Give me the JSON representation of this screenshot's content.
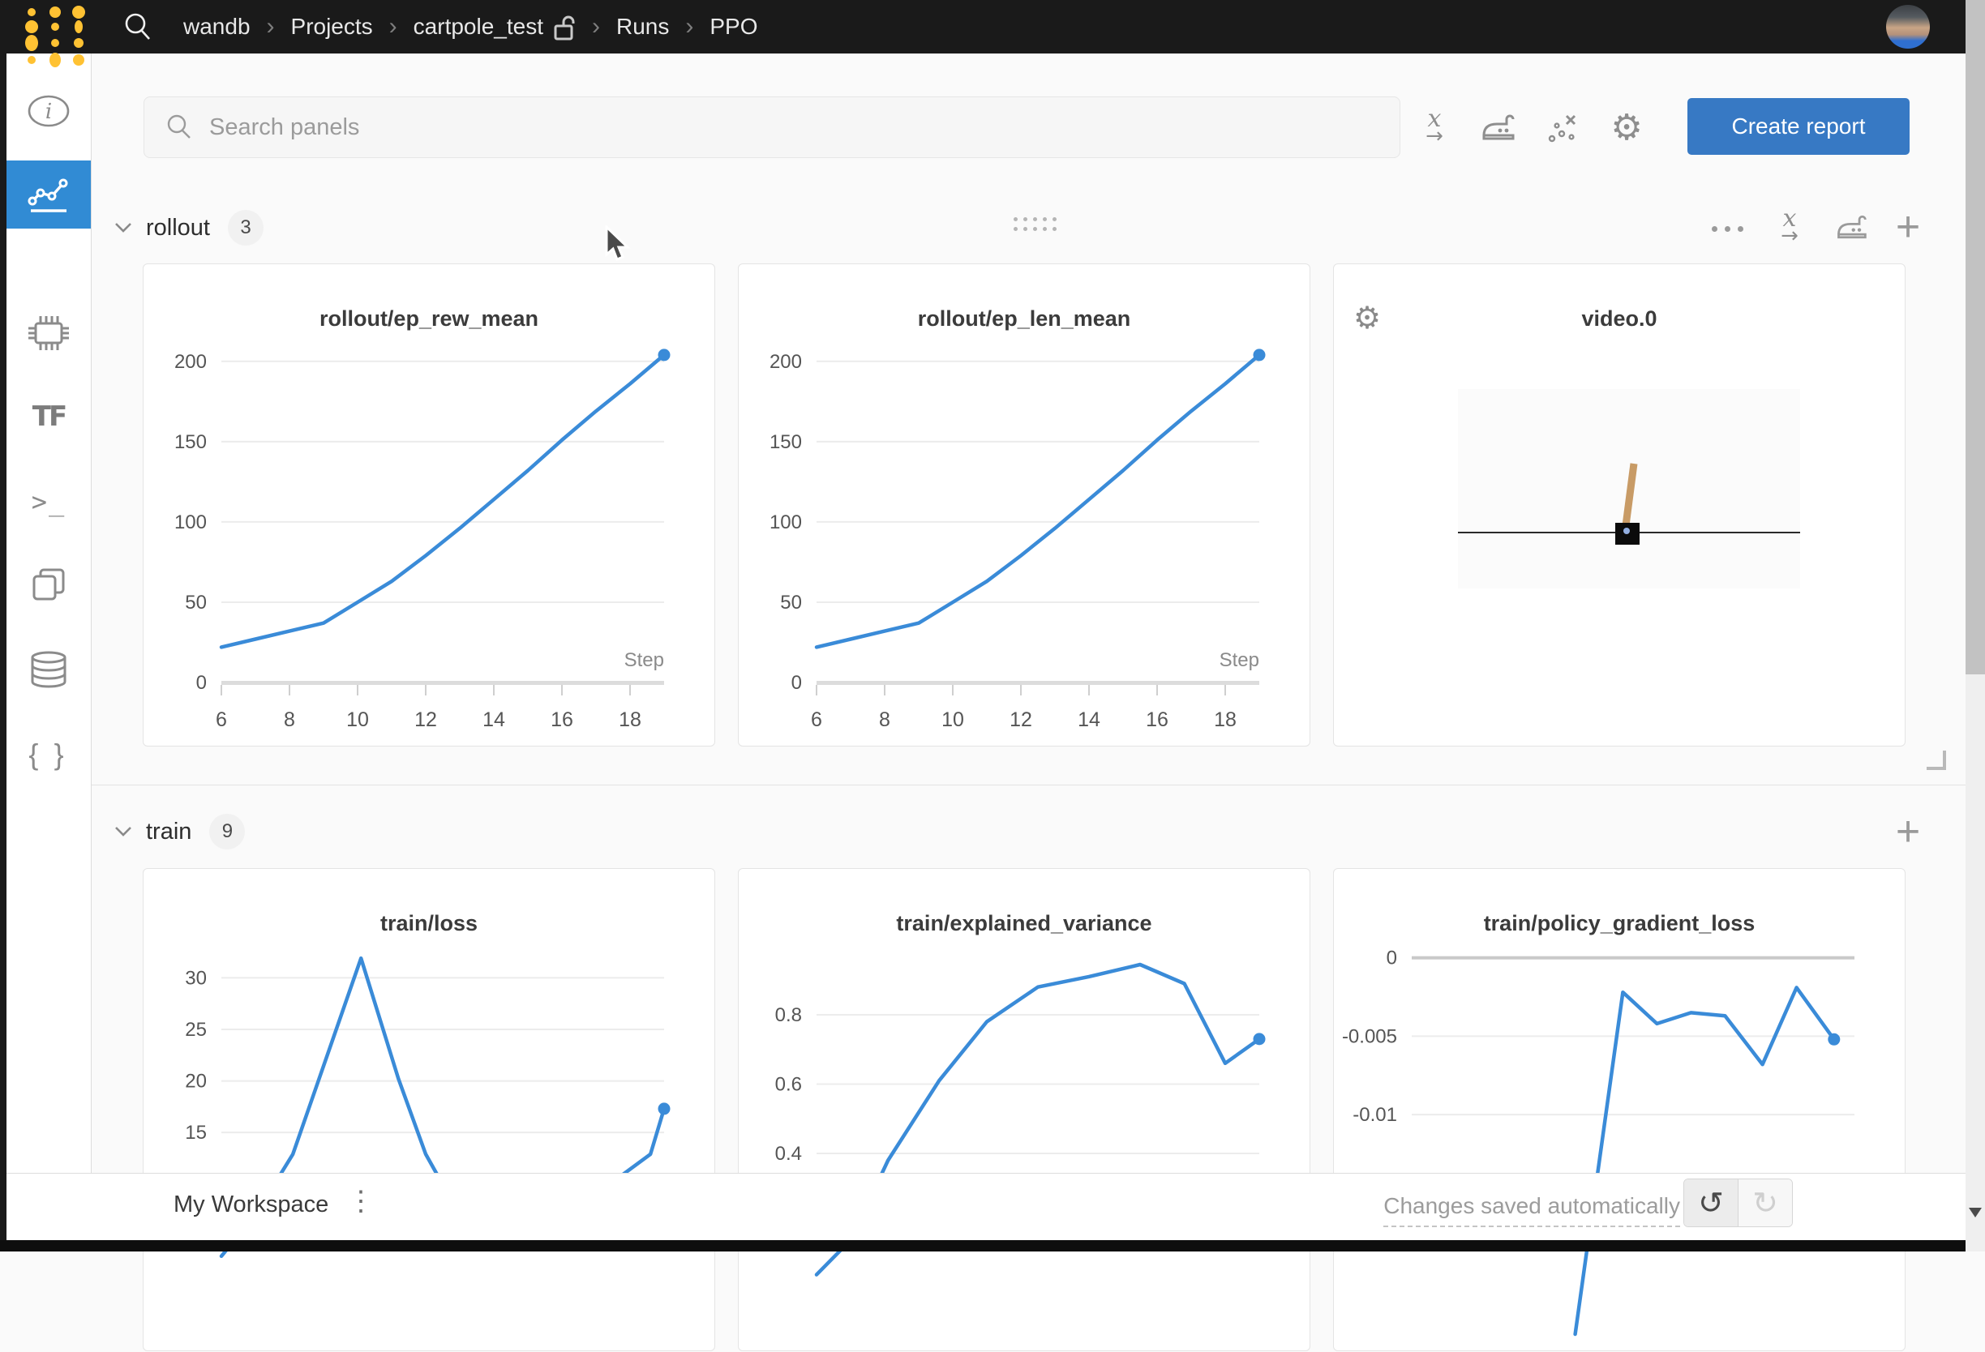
{
  "navbar": {
    "brand_icon": "wandb-dots-logo",
    "search_icon": "magnifier-icon",
    "breadcrumb": [
      {
        "label": "wandb"
      },
      {
        "label": "Projects"
      },
      {
        "label": "cartpole_test",
        "lock_icon": "open-lock-icon"
      },
      {
        "label": "Runs"
      },
      {
        "label": "PPO"
      }
    ],
    "avatar": "user-profile-photo"
  },
  "sidebar": {
    "items": [
      {
        "id": "overview",
        "icon": "info-icon"
      },
      {
        "id": "charts",
        "icon": "line-chart-icon",
        "active": true
      },
      {
        "id": "system",
        "icon": "chip-icon"
      },
      {
        "id": "model",
        "icon": "tensorflow-icon"
      },
      {
        "id": "logs",
        "icon": "terminal-icon"
      },
      {
        "id": "files",
        "icon": "files-icon"
      },
      {
        "id": "artifacts",
        "icon": "database-icon"
      },
      {
        "id": "config",
        "icon": "braces-icon"
      }
    ]
  },
  "toolbar": {
    "search_placeholder": "Search panels",
    "icons": [
      "x-axis-icon",
      "panel-settings-icon",
      "outliers-icon",
      "settings-gear-icon"
    ],
    "create_report_label": "Create report"
  },
  "sections": [
    {
      "id": "rollout",
      "title": "rollout",
      "count": "3",
      "actions": [
        "more-options",
        "x-axis",
        "panel-settings",
        "add-panel"
      ]
    },
    {
      "id": "train",
      "title": "train",
      "count": "9",
      "actions": [
        "add-panel"
      ]
    }
  ],
  "video_panel": {
    "title": "video.0",
    "gear_icon": "panel-settings-gear",
    "scene": {
      "pole_color": "#c89b66",
      "cart_color": "#0b0b0b",
      "track_color": "#2a2a2a",
      "pivot_color": "#92aee0",
      "backdrop_color": "#fbfbfb"
    }
  },
  "footer": {
    "workspace_label": "My Workspace",
    "autosave_text": "Changes saved automatically",
    "undo_icon": "undo-arrow",
    "redo_icon": "redo-arrow"
  },
  "theme": {
    "accent_blue": "#3779c4",
    "active_sidebar_blue": "#318bd4",
    "line_blue": "#3a8bd8",
    "navbar_bg": "#1a1a1a",
    "logo_yellow": "#ffc233"
  },
  "chart_data": [
    {
      "type": "line",
      "title": "rollout/ep_rew_mean",
      "color": "#3a8bd8",
      "x": [
        6,
        7,
        8,
        9,
        10,
        11,
        12,
        13,
        14,
        15,
        16,
        17,
        18,
        19
      ],
      "values": [
        22,
        27,
        32,
        37,
        50,
        63,
        79,
        96,
        114,
        132,
        151,
        169,
        186,
        204
      ],
      "xlabel": "Step",
      "xticks": [
        6,
        8,
        10,
        12,
        14,
        16,
        18
      ],
      "yticks": [
        0,
        50,
        100,
        150,
        200
      ],
      "ytick_labels": [
        "0",
        "50",
        "100",
        "150",
        "200"
      ],
      "xlim": [
        6,
        19
      ],
      "ylim": [
        0,
        210
      ],
      "x_axis": true,
      "endpoint_dot": true,
      "grid": true,
      "legend": "none"
    },
    {
      "type": "line",
      "title": "rollout/ep_len_mean",
      "color": "#3a8bd8",
      "x": [
        6,
        7,
        8,
        9,
        10,
        11,
        12,
        13,
        14,
        15,
        16,
        17,
        18,
        19
      ],
      "values": [
        22,
        27,
        32,
        37,
        50,
        63,
        79,
        96,
        114,
        132,
        151,
        169,
        186,
        204
      ],
      "xlabel": "Step",
      "xticks": [
        6,
        8,
        10,
        12,
        14,
        16,
        18
      ],
      "yticks": [
        0,
        50,
        100,
        150,
        200
      ],
      "ytick_labels": [
        "0",
        "50",
        "100",
        "150",
        "200"
      ],
      "xlim": [
        6,
        19
      ],
      "ylim": [
        0,
        210
      ],
      "x_axis": true,
      "endpoint_dot": true,
      "grid": true,
      "legend": "none"
    },
    {
      "type": "line",
      "title": "train/loss",
      "color": "#3a8bd8",
      "points": [
        [
          6,
          3
        ],
        [
          7,
          7
        ],
        [
          8.1,
          12.9
        ],
        [
          10.1,
          31.9
        ],
        [
          11.2,
          20.2
        ],
        [
          12,
          12.9
        ],
        [
          13,
          7
        ],
        [
          14,
          5
        ],
        [
          15,
          5.5
        ],
        [
          16,
          7
        ],
        [
          17,
          9
        ],
        [
          18.6,
          12.9
        ],
        [
          19,
          17.3
        ]
      ],
      "yticks": [
        15,
        20,
        25,
        30
      ],
      "ytick_labels": [
        "15",
        "20",
        "25",
        "30"
      ],
      "xlim": [
        6,
        19
      ],
      "ylim": [
        0,
        32.7
      ],
      "x_axis": false,
      "endpoint_dot": true,
      "grid": true,
      "legend": "none",
      "note_visible_partially": true
    },
    {
      "type": "line",
      "title": "train/explained_variance",
      "color": "#3a8bd8",
      "points": [
        [
          6,
          0.05
        ],
        [
          7,
          0.15
        ],
        [
          8.1,
          0.38
        ],
        [
          9.6,
          0.61
        ],
        [
          11,
          0.78
        ],
        [
          12.5,
          0.88
        ],
        [
          14,
          0.91
        ],
        [
          15.5,
          0.945
        ],
        [
          16.8,
          0.89
        ],
        [
          18,
          0.66
        ],
        [
          19,
          0.73
        ]
      ],
      "yticks": [
        0.4,
        0.6,
        0.8
      ],
      "ytick_labels": [
        "0.4",
        "0.6",
        "0.8"
      ],
      "xlim": [
        6,
        19
      ],
      "ylim": [
        0.014,
        0.987
      ],
      "x_axis": false,
      "endpoint_dot": true,
      "grid": true,
      "legend": "none",
      "note_visible_partially": true
    },
    {
      "type": "line",
      "title": "train/policy_gradient_loss",
      "color": "#3a8bd8",
      "points": [
        [
          10.8,
          -0.024
        ],
        [
          12.2,
          -0.0022
        ],
        [
          13.2,
          -0.0042
        ],
        [
          14.2,
          -0.0035
        ],
        [
          15.2,
          -0.0037
        ],
        [
          16.3,
          -0.0068
        ],
        [
          17.3,
          -0.0019
        ],
        [
          18.4,
          -0.0052
        ]
      ],
      "yticks": [
        0,
        -0.005,
        -0.01
      ],
      "ytick_labels": [
        "0",
        "-0.005",
        "-0.01"
      ],
      "xlim": [
        6,
        19
      ],
      "ylim": [
        -0.021,
        0.0005
      ],
      "x_axis": false,
      "endpoint_dot": true,
      "grid": true,
      "zero_line": true,
      "legend": "none",
      "note_visible_partially": true
    }
  ]
}
